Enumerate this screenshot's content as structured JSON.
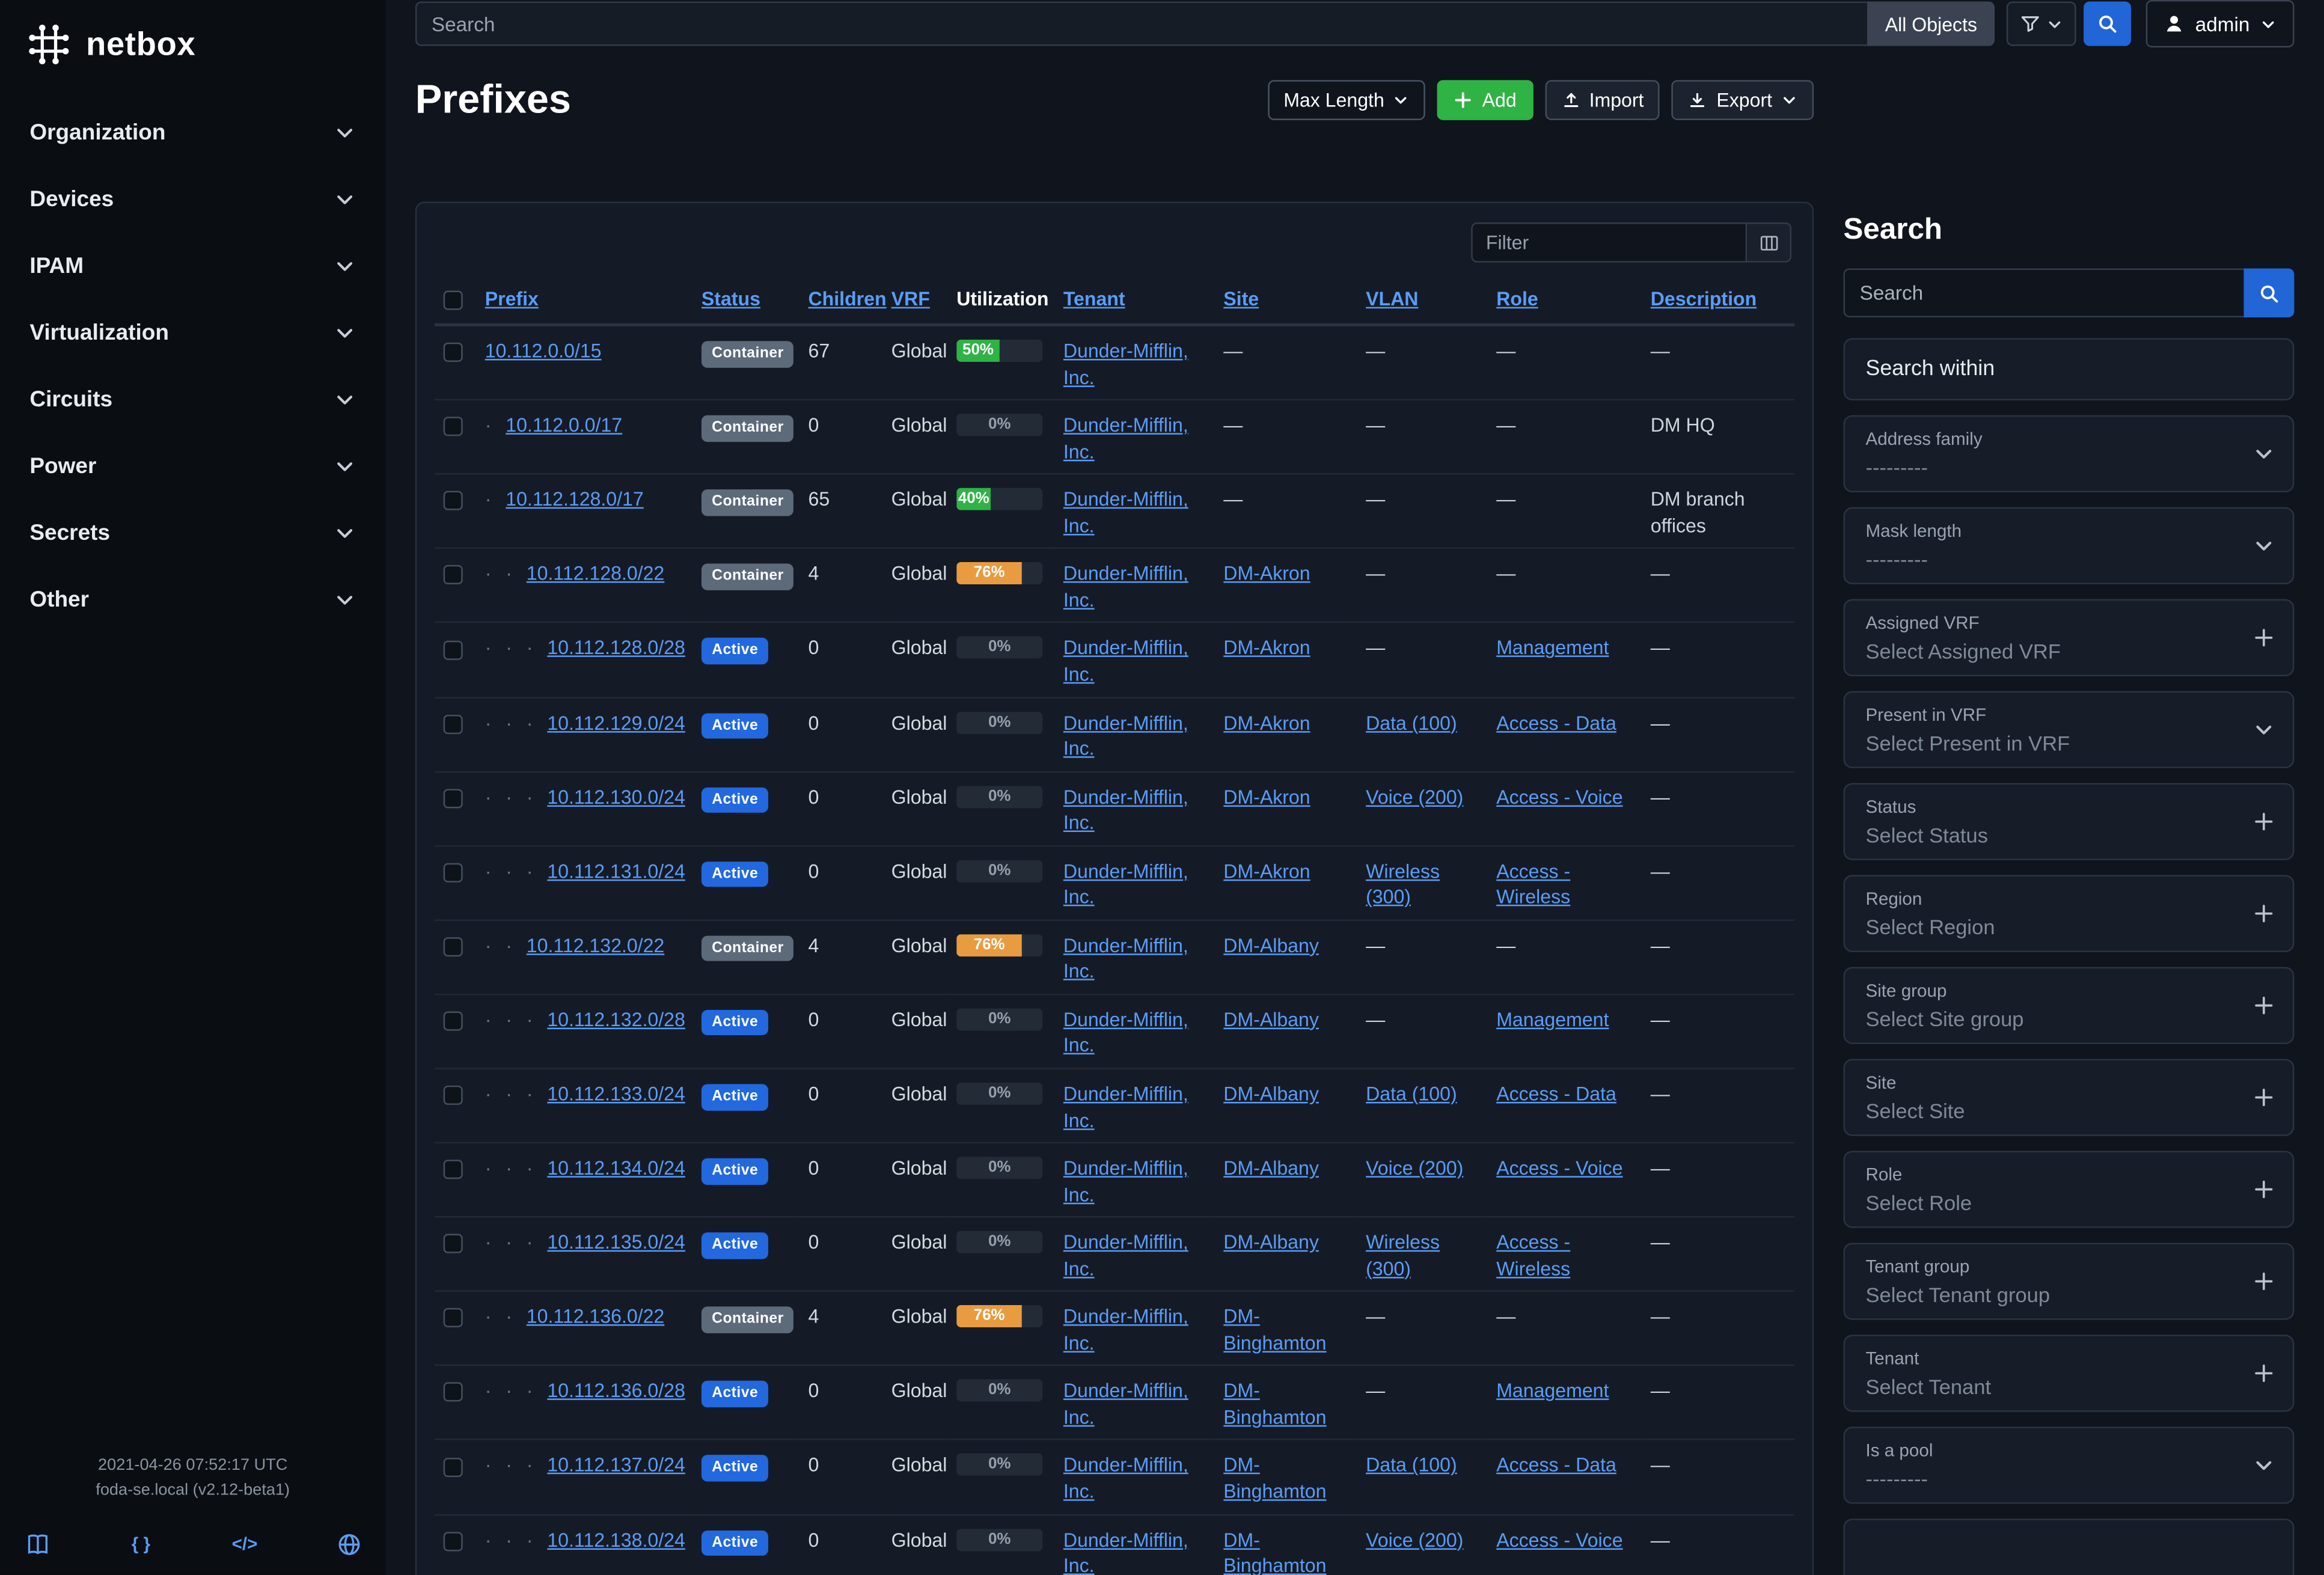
{
  "brand": {
    "name": "netbox"
  },
  "topbar": {
    "search_placeholder": "Search",
    "scope": "All Objects",
    "user": "admin"
  },
  "sidebar": {
    "items": [
      {
        "label": "Organization"
      },
      {
        "label": "Devices"
      },
      {
        "label": "IPAM"
      },
      {
        "label": "Virtualization"
      },
      {
        "label": "Circuits"
      },
      {
        "label": "Power"
      },
      {
        "label": "Secrets"
      },
      {
        "label": "Other"
      }
    ],
    "footer": {
      "timestamp": "2021-04-26 07:52:17 UTC",
      "version": "foda-se.local (v2.12-beta1)"
    }
  },
  "page": {
    "title": "Prefixes",
    "toolbar": {
      "max_length": "Max Length",
      "add": "Add",
      "import": "Import",
      "export": "Export"
    }
  },
  "table": {
    "filter_placeholder": "Filter",
    "columns": [
      {
        "label": "",
        "link": false
      },
      {
        "label": "Prefix",
        "link": true
      },
      {
        "label": "Status",
        "link": true
      },
      {
        "label": "Children",
        "link": true
      },
      {
        "label": "VRF",
        "link": true
      },
      {
        "label": "Utilization",
        "link": false
      },
      {
        "label": "Tenant",
        "link": true
      },
      {
        "label": "Site",
        "link": true
      },
      {
        "label": "VLAN",
        "link": true
      },
      {
        "label": "Role",
        "link": true
      },
      {
        "label": "Description",
        "link": true
      }
    ],
    "rows": [
      {
        "depth": 0,
        "prefix": "10.112.0.0/15",
        "status": "Container",
        "children": "67",
        "vrf": "Global",
        "util": 50,
        "util_color": "green",
        "tenant": "Dunder-Mifflin, Inc.",
        "site": "—",
        "vlan": "—",
        "role": "—",
        "description": "—"
      },
      {
        "depth": 1,
        "prefix": "10.112.0.0/17",
        "status": "Container",
        "children": "0",
        "vrf": "Global",
        "util": 0,
        "util_color": null,
        "tenant": "Dunder-Mifflin, Inc.",
        "site": "—",
        "vlan": "—",
        "role": "—",
        "description": "DM HQ"
      },
      {
        "depth": 1,
        "prefix": "10.112.128.0/17",
        "status": "Container",
        "children": "65",
        "vrf": "Global",
        "util": 40,
        "util_color": "green",
        "tenant": "Dunder-Mifflin, Inc.",
        "site": "—",
        "vlan": "—",
        "role": "—",
        "description": "DM branch offices"
      },
      {
        "depth": 2,
        "prefix": "10.112.128.0/22",
        "status": "Container",
        "children": "4",
        "vrf": "Global",
        "util": 76,
        "util_color": "orange",
        "tenant": "Dunder-Mifflin, Inc.",
        "site": "DM-Akron",
        "vlan": "—",
        "role": "—",
        "description": "—"
      },
      {
        "depth": 3,
        "prefix": "10.112.128.0/28",
        "status": "Active",
        "children": "0",
        "vrf": "Global",
        "util": 0,
        "util_color": null,
        "tenant": "Dunder-Mifflin, Inc.",
        "site": "DM-Akron",
        "vlan": "—",
        "role": "Management",
        "description": "—"
      },
      {
        "depth": 3,
        "prefix": "10.112.129.0/24",
        "status": "Active",
        "children": "0",
        "vrf": "Global",
        "util": 0,
        "util_color": null,
        "tenant": "Dunder-Mifflin, Inc.",
        "site": "DM-Akron",
        "vlan": "Data (100)",
        "role": "Access - Data",
        "description": "—"
      },
      {
        "depth": 3,
        "prefix": "10.112.130.0/24",
        "status": "Active",
        "children": "0",
        "vrf": "Global",
        "util": 0,
        "util_color": null,
        "tenant": "Dunder-Mifflin, Inc.",
        "site": "DM-Akron",
        "vlan": "Voice (200)",
        "role": "Access - Voice",
        "description": "—"
      },
      {
        "depth": 3,
        "prefix": "10.112.131.0/24",
        "status": "Active",
        "children": "0",
        "vrf": "Global",
        "util": 0,
        "util_color": null,
        "tenant": "Dunder-Mifflin, Inc.",
        "site": "DM-Akron",
        "vlan": "Wireless (300)",
        "role": "Access - Wireless",
        "description": "—"
      },
      {
        "depth": 2,
        "prefix": "10.112.132.0/22",
        "status": "Container",
        "children": "4",
        "vrf": "Global",
        "util": 76,
        "util_color": "orange",
        "tenant": "Dunder-Mifflin, Inc.",
        "site": "DM-Albany",
        "vlan": "—",
        "role": "—",
        "description": "—"
      },
      {
        "depth": 3,
        "prefix": "10.112.132.0/28",
        "status": "Active",
        "children": "0",
        "vrf": "Global",
        "util": 0,
        "util_color": null,
        "tenant": "Dunder-Mifflin, Inc.",
        "site": "DM-Albany",
        "vlan": "—",
        "role": "Management",
        "description": "—"
      },
      {
        "depth": 3,
        "prefix": "10.112.133.0/24",
        "status": "Active",
        "children": "0",
        "vrf": "Global",
        "util": 0,
        "util_color": null,
        "tenant": "Dunder-Mifflin, Inc.",
        "site": "DM-Albany",
        "vlan": "Data (100)",
        "role": "Access - Data",
        "description": "—"
      },
      {
        "depth": 3,
        "prefix": "10.112.134.0/24",
        "status": "Active",
        "children": "0",
        "vrf": "Global",
        "util": 0,
        "util_color": null,
        "tenant": "Dunder-Mifflin, Inc.",
        "site": "DM-Albany",
        "vlan": "Voice (200)",
        "role": "Access - Voice",
        "description": "—"
      },
      {
        "depth": 3,
        "prefix": "10.112.135.0/24",
        "status": "Active",
        "children": "0",
        "vrf": "Global",
        "util": 0,
        "util_color": null,
        "tenant": "Dunder-Mifflin, Inc.",
        "site": "DM-Albany",
        "vlan": "Wireless (300)",
        "role": "Access - Wireless",
        "description": "—"
      },
      {
        "depth": 2,
        "prefix": "10.112.136.0/22",
        "status": "Container",
        "children": "4",
        "vrf": "Global",
        "util": 76,
        "util_color": "orange",
        "tenant": "Dunder-Mifflin, Inc.",
        "site": "DM-Binghamton",
        "vlan": "—",
        "role": "—",
        "description": "—"
      },
      {
        "depth": 3,
        "prefix": "10.112.136.0/28",
        "status": "Active",
        "children": "0",
        "vrf": "Global",
        "util": 0,
        "util_color": null,
        "tenant": "Dunder-Mifflin, Inc.",
        "site": "DM-Binghamton",
        "vlan": "—",
        "role": "Management",
        "description": "—"
      },
      {
        "depth": 3,
        "prefix": "10.112.137.0/24",
        "status": "Active",
        "children": "0",
        "vrf": "Global",
        "util": 0,
        "util_color": null,
        "tenant": "Dunder-Mifflin, Inc.",
        "site": "DM-Binghamton",
        "vlan": "Data (100)",
        "role": "Access - Data",
        "description": "—"
      },
      {
        "depth": 3,
        "prefix": "10.112.138.0/24",
        "status": "Active",
        "children": "0",
        "vrf": "Global",
        "util": 0,
        "util_color": null,
        "tenant": "Dunder-Mifflin, Inc.",
        "site": "DM-Binghamton",
        "vlan": "Voice (200)",
        "role": "Access - Voice",
        "description": "—"
      }
    ]
  },
  "filter_panel": {
    "title": "Search",
    "search_placeholder": "Search",
    "search_within": "Search within",
    "fields": [
      {
        "label": "Address family",
        "value": "---------",
        "control": "select"
      },
      {
        "label": "Mask length",
        "value": "---------",
        "control": "select"
      },
      {
        "label": "Assigned VRF",
        "value": "Select Assigned VRF",
        "control": "plus"
      },
      {
        "label": "Present in VRF",
        "value": "Select Present in VRF",
        "control": "select"
      },
      {
        "label": "Status",
        "value": "Select Status",
        "control": "plus"
      },
      {
        "label": "Region",
        "value": "Select Region",
        "control": "plus"
      },
      {
        "label": "Site group",
        "value": "Select Site group",
        "control": "plus"
      },
      {
        "label": "Site",
        "value": "Select Site",
        "control": "plus"
      },
      {
        "label": "Role",
        "value": "Select Role",
        "control": "plus"
      },
      {
        "label": "Tenant group",
        "value": "Select Tenant group",
        "control": "plus"
      },
      {
        "label": "Tenant",
        "value": "Select Tenant",
        "control": "plus"
      },
      {
        "label": "Is a pool",
        "value": "---------",
        "control": "select"
      }
    ]
  }
}
